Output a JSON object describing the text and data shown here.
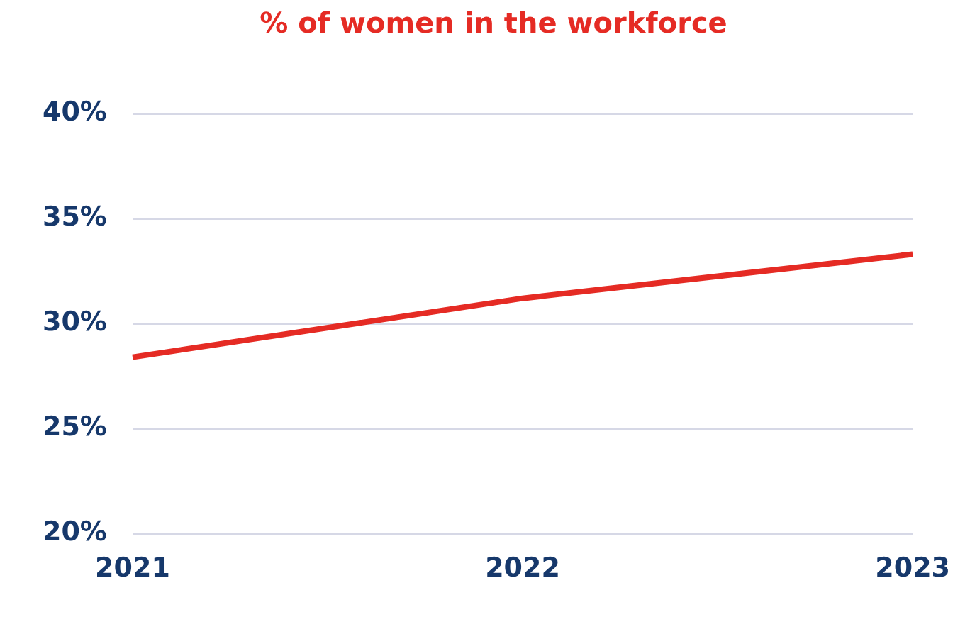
{
  "chart_data": {
    "type": "line",
    "title": "% of women in the workforce",
    "categories": [
      "2021",
      "2022",
      "2023"
    ],
    "series": [
      {
        "color": "#e52b24",
        "values": [
          28.4,
          31.2,
          33.3
        ]
      }
    ],
    "ylim": [
      20,
      40
    ],
    "yticks": [
      {
        "value": 20,
        "label": "20%"
      },
      {
        "value": 25,
        "label": "25%"
      },
      {
        "value": 30,
        "label": "30%"
      },
      {
        "value": 35,
        "label": "35%"
      },
      {
        "value": 40,
        "label": "40%"
      }
    ],
    "grid": "y",
    "legend": false,
    "marker": "none",
    "line_style": "solid"
  }
}
